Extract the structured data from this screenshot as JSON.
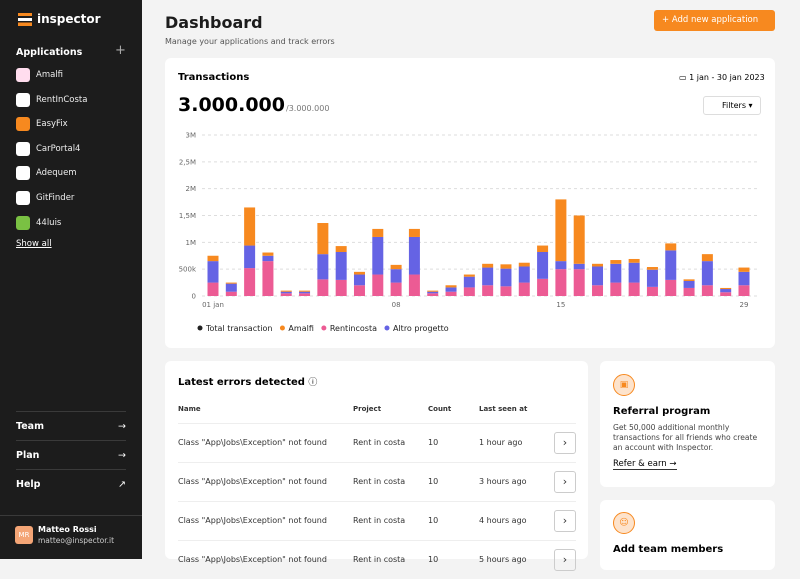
{
  "sidebar": {
    "logo": "inspector",
    "section": "Applications",
    "apps": [
      "Amalfi",
      "RentInCosta",
      "EasyFix",
      "CarPortal4",
      "Adequem",
      "GitFinder",
      "44luis"
    ],
    "show_all": "Show all",
    "nav": [
      "Team",
      "Plan",
      "Help"
    ],
    "user": {
      "initials": "MR",
      "name": "Matteo Rossi",
      "email": "matteo@inspector.it"
    }
  },
  "header": {
    "title": "Dashboard",
    "subtitle": "Manage your applications and track errors",
    "button": "Add new application"
  },
  "transactions": {
    "title": "Transactions",
    "date_range": "1 jan - 30 jan 2023",
    "total": "3.000.000",
    "total_limit": "/3.000.000",
    "filters": "Filters",
    "legend_total": {
      "name": "Total transaction",
      "color": "#222222"
    }
  },
  "chart_data": {
    "type": "bar",
    "stacked": true,
    "grid": true,
    "categories": [
      "01 jan",
      null,
      null,
      null,
      null,
      null,
      null,
      null,
      null,
      null,
      "08",
      null,
      null,
      null,
      null,
      null,
      null,
      null,
      null,
      "15",
      null,
      null,
      null,
      null,
      null,
      null,
      null,
      null,
      null,
      "29"
    ],
    "series": [
      {
        "name": "Amalfi",
        "color": "#f7891f",
        "values": [
          100000,
          20000,
          710000,
          60000,
          20000,
          20000,
          580000,
          110000,
          50000,
          150000,
          80000,
          150000,
          20000,
          40000,
          40000,
          70000,
          80000,
          70000,
          120000,
          1150000,
          900000,
          50000,
          70000,
          70000,
          50000,
          130000,
          30000,
          130000,
          20000,
          80000
        ]
      },
      {
        "name": "Rentincosta",
        "color": "#ec5b94",
        "values": [
          250000,
          80000,
          520000,
          650000,
          50000,
          50000,
          310000,
          300000,
          200000,
          400000,
          250000,
          400000,
          50000,
          80000,
          160000,
          200000,
          180000,
          250000,
          320000,
          500000,
          500000,
          200000,
          250000,
          250000,
          170000,
          300000,
          150000,
          200000,
          70000,
          200000
        ]
      },
      {
        "name": "Altro progetto",
        "color": "#6563e4",
        "values": [
          400000,
          150000,
          420000,
          100000,
          30000,
          30000,
          470000,
          520000,
          200000,
          700000,
          250000,
          700000,
          30000,
          80000,
          200000,
          330000,
          330000,
          300000,
          500000,
          150000,
          100000,
          350000,
          350000,
          370000,
          320000,
          550000,
          130000,
          450000,
          60000,
          250000
        ]
      }
    ],
    "ylim": [
      0,
      3000000
    ],
    "yticks": [
      0,
      {
        "value": 500000,
        "label": "500k"
      },
      {
        "value": 1000000,
        "label": "1M"
      },
      {
        "value": 1500000,
        "label": "1,5M"
      },
      {
        "value": 2000000,
        "label": "2M"
      },
      {
        "value": 2500000,
        "label": "2,5M"
      },
      {
        "value": 3000000,
        "label": "3M"
      }
    ]
  },
  "errors": {
    "title": "Latest errors detected",
    "columns": [
      "Name",
      "Project",
      "Count",
      "Last seen at"
    ],
    "rows": [
      [
        "Class \"App\\Jobs\\Exception\" not found",
        "Rent in costa",
        10,
        "1 hour ago"
      ],
      [
        "Class \"App\\Jobs\\Exception\" not found",
        "Rent in costa",
        10,
        "3 hours ago"
      ],
      [
        "Class \"App\\Jobs\\Exception\" not found",
        "Rent in costa",
        10,
        "4 hours ago"
      ],
      [
        "Class \"App\\Jobs\\Exception\" not found",
        "Rent in costa",
        10,
        "5 hours ago"
      ]
    ]
  },
  "referral": {
    "title": "Referral program",
    "text": "Get 50,000 additional monthly transactions for all friends who create an account with Inspector.",
    "link": "Refer & earn"
  },
  "team_card": {
    "title": "Add team members"
  }
}
